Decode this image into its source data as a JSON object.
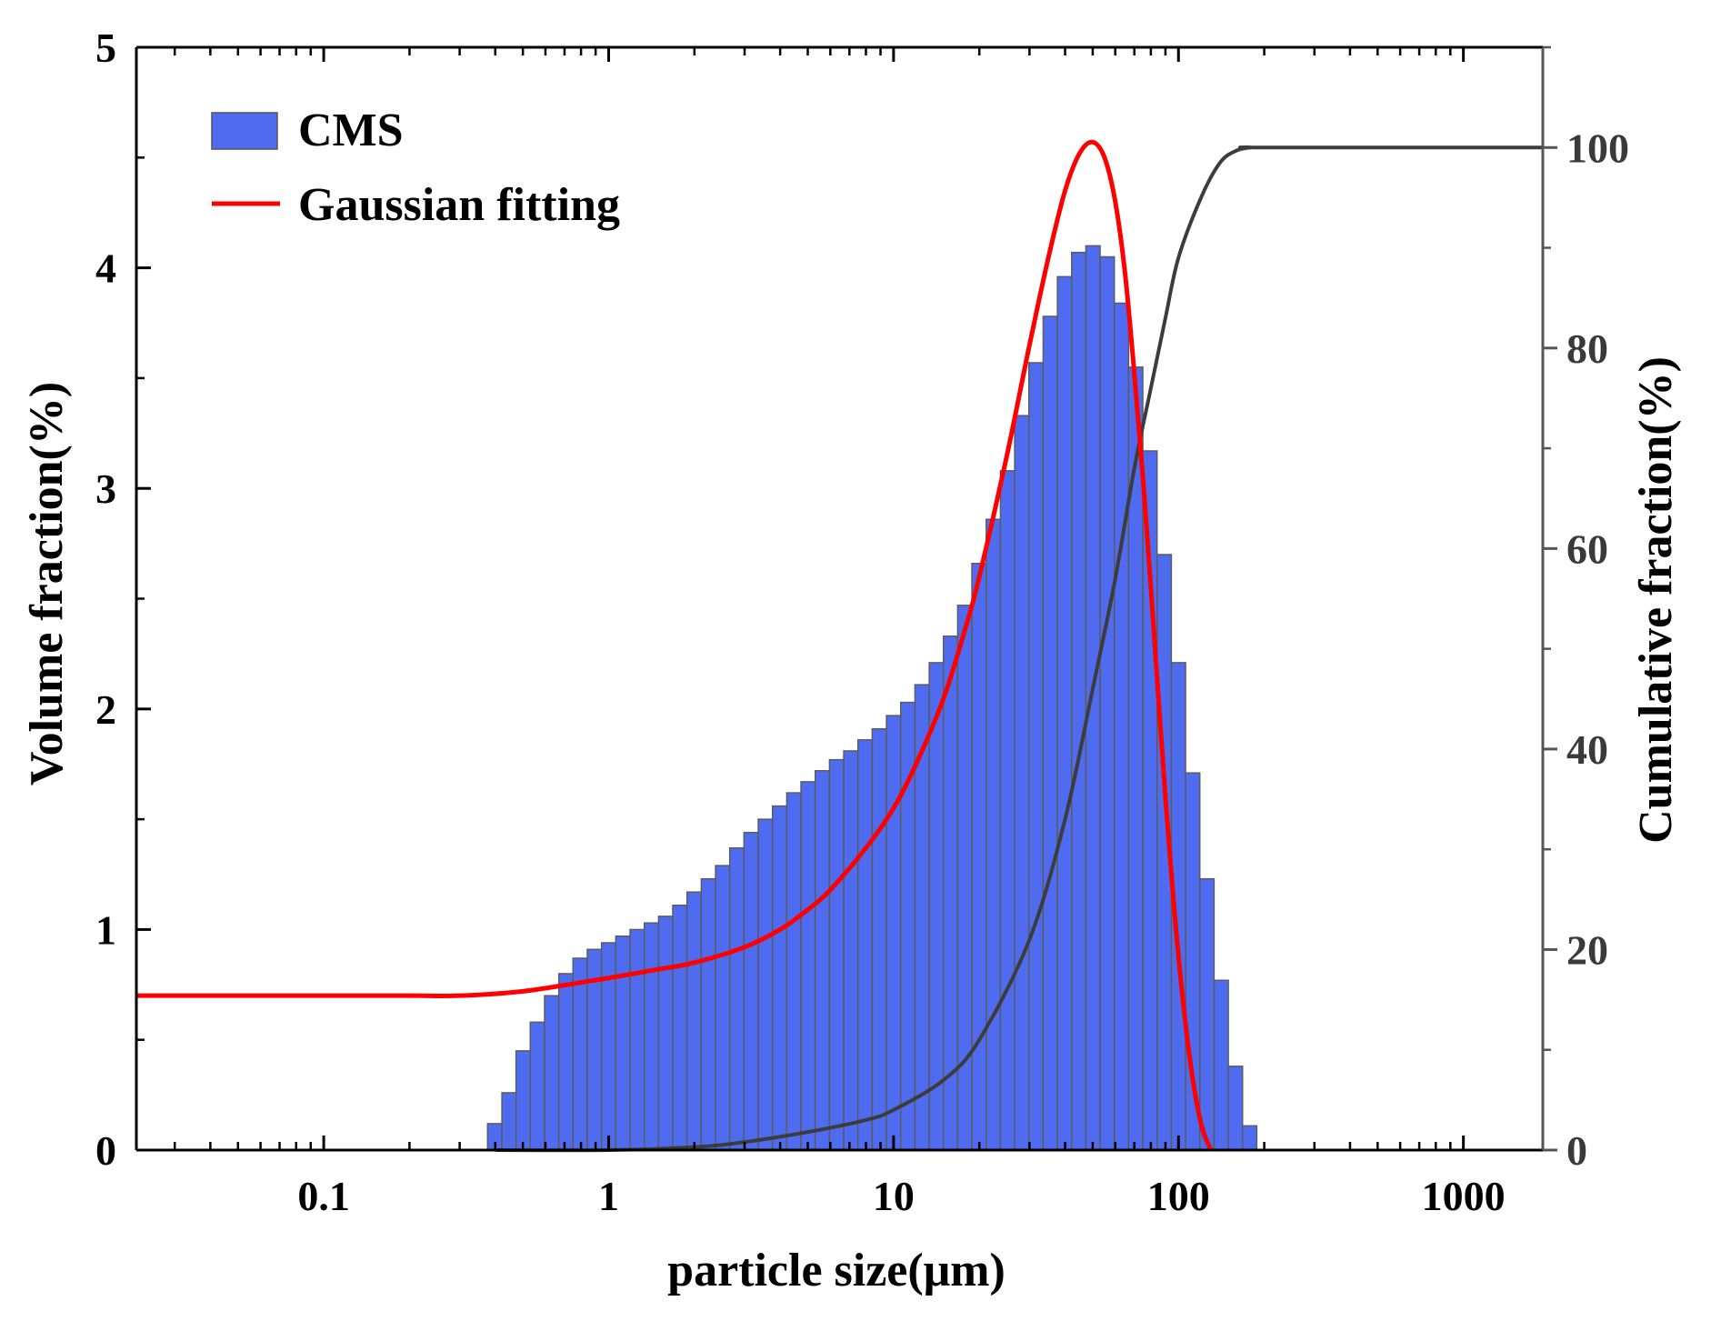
{
  "chart_data": {
    "type": "bar",
    "title": "",
    "xlabel": "particle size(μm)",
    "ylabel": "Volume fraction(%)",
    "y2label": "Cumulative fraction(%)",
    "xscale": "log",
    "xlim": [
      0.022,
      1900
    ],
    "ylim": [
      0,
      5
    ],
    "y2lim": [
      0,
      110
    ],
    "xticks": [
      0.1,
      1,
      10,
      100,
      1000
    ],
    "xtick_labels": [
      "0.1",
      "1",
      "10",
      "100",
      "1000"
    ],
    "yticks": [
      0,
      1,
      2,
      3,
      4,
      5
    ],
    "ytick_labels": [
      "0",
      "1",
      "2",
      "3",
      "4",
      "5"
    ],
    "y2ticks": [
      0,
      20,
      40,
      60,
      80,
      100
    ],
    "y2tick_labels": [
      "0",
      "20",
      "40",
      "60",
      "80",
      "100"
    ],
    "legend_position": "top-left",
    "colors": {
      "bars": "#4f6cf0",
      "bar_edge": "#5a5a5a",
      "gaussian": "#ff0000",
      "cumulative": "#3c3c3c",
      "axis": "#000000"
    },
    "series": [
      {
        "name": "CMS",
        "kind": "histogram",
        "bin_ratio": 1.122,
        "x": [
          0.398,
          0.447,
          0.501,
          0.562,
          0.631,
          0.708,
          0.794,
          0.891,
          1.0,
          1.122,
          1.259,
          1.413,
          1.585,
          1.778,
          1.995,
          2.239,
          2.512,
          2.818,
          3.162,
          3.548,
          3.981,
          4.467,
          5.012,
          5.623,
          6.31,
          7.079,
          7.943,
          8.913,
          10.0,
          11.22,
          12.59,
          14.13,
          15.85,
          17.78,
          19.95,
          22.39,
          25.12,
          28.18,
          31.62,
          35.48,
          39.81,
          44.67,
          50.12,
          56.23,
          63.1,
          70.79,
          79.43,
          89.13,
          100.0,
          112.2,
          125.9,
          141.3,
          158.5,
          177.8
        ],
        "values": [
          0.12,
          0.26,
          0.45,
          0.58,
          0.7,
          0.8,
          0.87,
          0.91,
          0.94,
          0.97,
          1.0,
          1.03,
          1.06,
          1.11,
          1.17,
          1.23,
          1.29,
          1.37,
          1.44,
          1.5,
          1.56,
          1.62,
          1.67,
          1.72,
          1.77,
          1.81,
          1.86,
          1.91,
          1.97,
          2.03,
          2.11,
          2.21,
          2.33,
          2.47,
          2.66,
          2.86,
          3.08,
          3.33,
          3.57,
          3.78,
          3.96,
          4.07,
          4.1,
          4.05,
          3.84,
          3.55,
          3.17,
          2.7,
          2.21,
          1.71,
          1.23,
          0.77,
          0.38,
          0.11
        ]
      },
      {
        "name": "Gaussian fitting",
        "kind": "line",
        "x": [
          0.022,
          0.05,
          0.1,
          0.2,
          0.3,
          0.5,
          0.8,
          1.0,
          1.5,
          2.0,
          3.0,
          4.0,
          5.0,
          6.0,
          8.0,
          10.0,
          12.0,
          15.0,
          18.0,
          20.0,
          25.0,
          30.0,
          35.0,
          40.0,
          45.0,
          50.0,
          55.0,
          60.0,
          65.0,
          70.0,
          75.0,
          80.0,
          90.0,
          100.0,
          110.0,
          120.0,
          130.0
        ],
        "values": [
          0.7,
          0.7,
          0.7,
          0.7,
          0.7,
          0.72,
          0.76,
          0.78,
          0.82,
          0.85,
          0.92,
          1.0,
          1.09,
          1.18,
          1.37,
          1.55,
          1.75,
          2.05,
          2.38,
          2.6,
          3.15,
          3.65,
          4.05,
          4.35,
          4.52,
          4.57,
          4.5,
          4.3,
          3.97,
          3.52,
          3.05,
          2.55,
          1.6,
          0.88,
          0.4,
          0.12,
          0.0
        ]
      },
      {
        "name": "Cumulative",
        "kind": "line",
        "axis": "right",
        "x": [
          0.4,
          1.0,
          2.0,
          3.0,
          5.0,
          8.0,
          10.0,
          15.0,
          20.0,
          30.0,
          40.0,
          50.0,
          60.0,
          70.0,
          80.0,
          90.0,
          100.0,
          120.0,
          140.0,
          160.0,
          180.0,
          200.0,
          1900.0
        ],
        "values": [
          0.0,
          0.0,
          0.3,
          0.8,
          1.8,
          3.0,
          4.0,
          7.0,
          11.0,
          21.0,
          33.0,
          46.0,
          57.0,
          68.0,
          76.0,
          83.0,
          89.0,
          95.0,
          98.5,
          99.7,
          100.0,
          100.0,
          100.0
        ]
      }
    ]
  }
}
